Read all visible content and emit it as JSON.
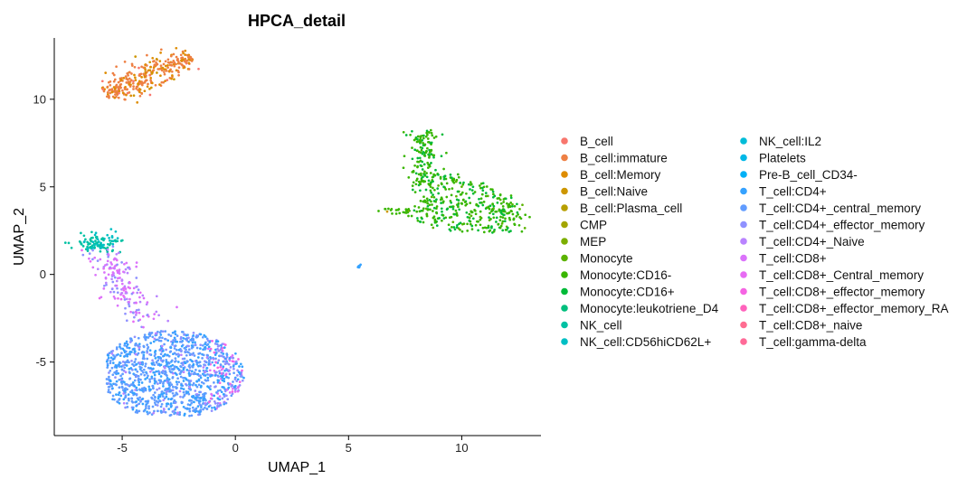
{
  "chart_data": {
    "type": "scatter",
    "title": "HPCA_detail",
    "xlabel": "UMAP_1",
    "ylabel": "UMAP_2",
    "xlim": [
      -8.0,
      13.5
    ],
    "ylim": [
      -9.2,
      13.5
    ],
    "xticks": [
      -5,
      0,
      5,
      10
    ],
    "yticks": [
      -5,
      0,
      5,
      10
    ],
    "grid": false,
    "legend_position": "right",
    "legend_entries": [
      {
        "name": "B_cell",
        "color": "#F8766D"
      },
      {
        "name": "B_cell:immature",
        "color": "#EE8044"
      },
      {
        "name": "B_cell:Memory",
        "color": "#DE8C00"
      },
      {
        "name": "B_cell:Naive",
        "color": "#CD9600"
      },
      {
        "name": "B_cell:Plasma_cell",
        "color": "#B79F00"
      },
      {
        "name": "CMP",
        "color": "#A3A500"
      },
      {
        "name": "MEP",
        "color": "#7CAE00"
      },
      {
        "name": "Monocyte",
        "color": "#5BB300"
      },
      {
        "name": "Monocyte:CD16-",
        "color": "#39B600"
      },
      {
        "name": "Monocyte:CD16+",
        "color": "#00BA38"
      },
      {
        "name": "Monocyte:leukotriene_D4",
        "color": "#00BF7D"
      },
      {
        "name": "NK_cell",
        "color": "#00C1A3"
      },
      {
        "name": "NK_cell:CD56hiCD62L+",
        "color": "#00BFC4"
      },
      {
        "name": "NK_cell:IL2",
        "color": "#00BCD8"
      },
      {
        "name": "Platelets",
        "color": "#00B8E7"
      },
      {
        "name": "Pre-B_cell_CD34-",
        "color": "#00B0F6"
      },
      {
        "name": "T_cell:CD4+",
        "color": "#35A2FF"
      },
      {
        "name": "T_cell:CD4+_central_memory",
        "color": "#619CFF"
      },
      {
        "name": "T_cell:CD4+_effector_memory",
        "color": "#8F91FF"
      },
      {
        "name": "T_cell:CD4+_Naive",
        "color": "#B983FF"
      },
      {
        "name": "T_cell:CD8+",
        "color": "#DB72FB"
      },
      {
        "name": "T_cell:CD8+_Central_memory",
        "color": "#E76BF3"
      },
      {
        "name": "T_cell:CD8+_effector_memory",
        "color": "#F564E3"
      },
      {
        "name": "T_cell:CD8+_effector_memory_RA",
        "color": "#FF62BC"
      },
      {
        "name": "T_cell:CD8+_naive",
        "color": "#FF6C91"
      },
      {
        "name": "T_cell:gamma-delta",
        "color": "#FF6A98"
      }
    ],
    "clusters": [
      {
        "group": "B_cell:immature / B_cell:Memory",
        "region": "top-left",
        "count": 320
      },
      {
        "group": "Monocyte:CD16- / Monocyte:CD16+",
        "region": "right",
        "count": 520
      },
      {
        "group": "NK_cell",
        "region": "left",
        "count": 100
      },
      {
        "group": "T_cell subsets",
        "region": "bottom-left",
        "count": 1400
      }
    ]
  }
}
